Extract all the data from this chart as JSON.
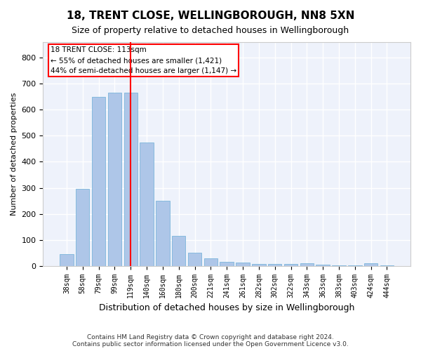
{
  "title1": "18, TRENT CLOSE, WELLINGBOROUGH, NN8 5XN",
  "title2": "Size of property relative to detached houses in Wellingborough",
  "xlabel": "Distribution of detached houses by size in Wellingborough",
  "ylabel": "Number of detached properties",
  "categories": [
    "38sqm",
    "58sqm",
    "79sqm",
    "99sqm",
    "119sqm",
    "140sqm",
    "160sqm",
    "180sqm",
    "200sqm",
    "221sqm",
    "241sqm",
    "261sqm",
    "282sqm",
    "302sqm",
    "322sqm",
    "343sqm",
    "363sqm",
    "383sqm",
    "403sqm",
    "424sqm",
    "444sqm"
  ],
  "values": [
    45,
    295,
    650,
    665,
    665,
    475,
    250,
    115,
    50,
    28,
    15,
    13,
    8,
    8,
    8,
    10,
    5,
    3,
    2,
    10,
    2
  ],
  "bar_color": "#aec6e8",
  "bar_edge_color": "#6aaed6",
  "red_line_index": 4,
  "annotation_line1": "18 TRENT CLOSE: 113sqm",
  "annotation_line2": "← 55% of detached houses are smaller (1,421)",
  "annotation_line3": "44% of semi-detached houses are larger (1,147) →",
  "ylim": [
    0,
    860
  ],
  "yticks": [
    0,
    100,
    200,
    300,
    400,
    500,
    600,
    700,
    800
  ],
  "background_color": "#eef2fb",
  "grid_color": "#ffffff",
  "footer1": "Contains HM Land Registry data © Crown copyright and database right 2024.",
  "footer2": "Contains public sector information licensed under the Open Government Licence v3.0."
}
